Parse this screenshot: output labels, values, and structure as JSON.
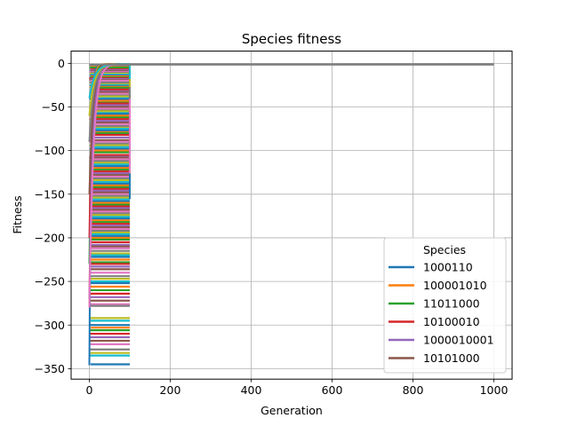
{
  "chart_data": {
    "type": "line",
    "title": "Species fitness",
    "xlabel": "Generation",
    "ylabel": "Fitness",
    "xlim": [
      -45,
      1045
    ],
    "ylim": [
      -362,
      14
    ],
    "xticks": [
      0,
      200,
      400,
      600,
      800,
      1000
    ],
    "yticks": [
      0,
      -50,
      -100,
      -150,
      -200,
      -250,
      -300,
      -350
    ],
    "xtick_labels": [
      "0",
      "200",
      "400",
      "600",
      "800",
      "1000"
    ],
    "ytick_labels": [
      "0",
      "−50",
      "−100",
      "−150",
      "−200",
      "−250",
      "−300",
      "−350"
    ],
    "grid": true,
    "legend": {
      "title": "Species",
      "placement": "lower-right",
      "entries": [
        {
          "label": "1000110",
          "color": "#1f77b4"
        },
        {
          "label": "100001010",
          "color": "#ff7f0e"
        },
        {
          "label": "11011000",
          "color": "#2ca02c"
        },
        {
          "label": "10100010",
          "color": "#d62728"
        },
        {
          "label": "1000010001",
          "color": "#9467bd"
        },
        {
          "label": "10101000",
          "color": "#8c564b"
        }
      ]
    },
    "palette": [
      "#1f77b4",
      "#ff7f0e",
      "#2ca02c",
      "#d62728",
      "#9467bd",
      "#8c564b",
      "#e377c2",
      "#7f7f7f",
      "#bcbd22",
      "#17becf"
    ],
    "series": [
      {
        "color": "#1f77b4",
        "start": -346,
        "end": -2,
        "x_end": 100
      },
      {
        "color": "#ff7f0e",
        "start": -280,
        "end": -1,
        "x_end": 100
      },
      {
        "color": "#2ca02c",
        "start": -230,
        "end": -1,
        "x_end": 100
      },
      {
        "color": "#d62728",
        "start": -200,
        "end": -1,
        "x_end": 100
      },
      {
        "color": "#9467bd",
        "start": -270,
        "end": -1,
        "x_end": 100
      },
      {
        "color": "#8c564b",
        "start": -150,
        "end": -1,
        "x_end": 100
      },
      {
        "color": "#e377c2",
        "start": -280,
        "end": -1,
        "x_end": 100
      },
      {
        "color": "#7f7f7f",
        "start": -90,
        "end": -1,
        "x_end": 1000
      },
      {
        "color": "#bcbd22",
        "start": -60,
        "end": -1,
        "x_end": 100
      },
      {
        "color": "#17becf",
        "start": -40,
        "end": -1,
        "x_end": 100
      }
    ],
    "plateaus": [
      -2,
      -4,
      -5,
      -7,
      -8,
      -9,
      -10,
      -11,
      -12,
      -13,
      -14,
      -15,
      -16,
      -17,
      -18,
      -19,
      -20,
      -22,
      -24,
      -25,
      -26,
      -27,
      -28,
      -30,
      -32,
      -33,
      -35,
      -37,
      -38,
      -40,
      -41,
      -43,
      -45,
      -46,
      -48,
      -50,
      -52,
      -54,
      -55,
      -57,
      -58,
      -60,
      -62,
      -64,
      -66,
      -68,
      -70,
      -72,
      -74,
      -75,
      -77,
      -79,
      -80,
      -82,
      -85,
      -88,
      -90,
      -92,
      -94,
      -96,
      -98,
      -100,
      -102,
      -105,
      -107,
      -108,
      -110,
      -112,
      -114,
      -116,
      -118,
      -120,
      -122,
      -124,
      -126,
      -128,
      -130,
      -132,
      -134,
      -136,
      -138,
      -140,
      -142,
      -144,
      -146,
      -148,
      -150,
      -152,
      -154,
      -156,
      -158,
      -160,
      -162,
      -164,
      -166,
      -168,
      -170,
      -172,
      -174,
      -176,
      -178,
      -180,
      -182,
      -184,
      -186,
      -188,
      -190,
      -192,
      -194,
      -196,
      -198,
      -200,
      -202,
      -205,
      -208,
      -210,
      -212,
      -215,
      -218,
      -220,
      -222,
      -225,
      -228,
      -230,
      -233,
      -236,
      -240,
      -244,
      -247,
      -250,
      -252,
      -256,
      -260,
      -264,
      -268,
      -272,
      -276,
      -278,
      -292,
      -295,
      -300,
      -303,
      -306,
      -310,
      -314,
      -318,
      -322,
      -328,
      -332,
      -335,
      -345
    ]
  }
}
